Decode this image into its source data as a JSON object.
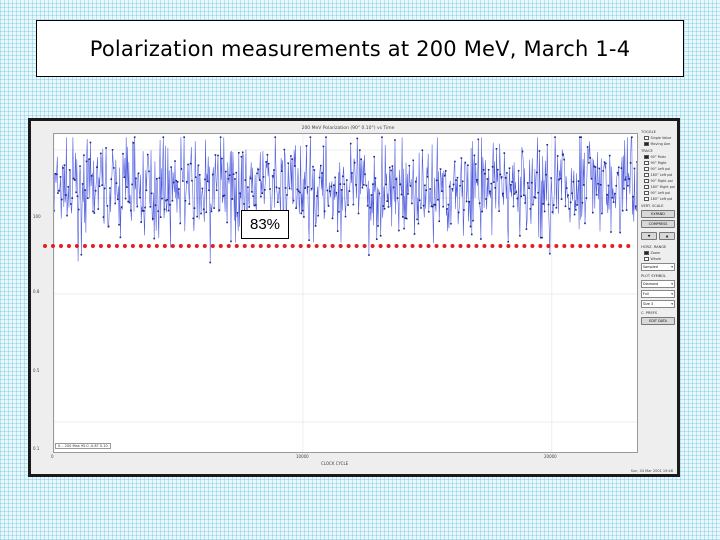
{
  "slide": {
    "title": "Polarization measurements at 200 MeV, March 1-4",
    "callout": "83%"
  },
  "plot": {
    "title": "200 MeV Polarization (90° 0.10°) vs Time",
    "x_axis_label": "CLOCK CYCLE",
    "y_ticks": [
      "100",
      "0.8",
      "0.5",
      "0.1"
    ],
    "x_ticks": [
      "0",
      "10000",
      "20000"
    ],
    "status_readout": "0... 200  Max 95.0 -0.87 0.10",
    "footer": "Sun, 04 Mar 2001 19:48"
  },
  "panel": {
    "toggle_label": "TOGGLE",
    "toggle_items": [
      {
        "label": "Single Value",
        "on": false
      },
      {
        "label": "Moving Ave",
        "on": true
      }
    ],
    "trace_label": "TRACE",
    "trace_items": [
      {
        "label": "90° Polar",
        "on": true
      },
      {
        "label": "90° Right",
        "on": false
      },
      {
        "label": "90° Left pol",
        "on": false
      },
      {
        "label": "180° Left pol",
        "on": false
      },
      {
        "label": "90° Right pol",
        "on": false
      },
      {
        "label": "180° Right pol",
        "on": false
      },
      {
        "label": "90° Left pol",
        "on": false
      },
      {
        "label": "180° Left pol",
        "on": false
      }
    ],
    "vert_scale_label": "VERT. SCALE",
    "expand_label": "EXPAND",
    "compress_label": "COMPRESS",
    "down_arrow": "▼",
    "up_arrow": "▲",
    "horz_range_label": "HORZ. RANGE",
    "horz_items": [
      {
        "label": "Zoom",
        "on": true
      },
      {
        "label": "Whole",
        "on": false
      }
    ],
    "horz_select": "Sampled",
    "plot_symbol_label": "PLOT SYMBOL",
    "plot_symbol_select": "Diamond",
    "plot_fill_select": "Full",
    "plot_size_select": "Size 3",
    "c_prefs_label": "C. PREFS",
    "edit_data_label": "EDIT DATA"
  },
  "chart_data": {
    "type": "line",
    "title": "200 MeV Polarization (90° 0.10°) vs Time",
    "xlabel": "CLOCK CYCLE",
    "ylabel": "",
    "xlim": [
      0,
      23500
    ],
    "ylim": [
      0,
      1.0
    ],
    "x_ticks": [
      0,
      10000,
      20000
    ],
    "series": [
      {
        "mean": 0.83,
        "spread": 0.07,
        "n_points": 900
      }
    ],
    "reference_line": 0.83,
    "grid": true,
    "colors": {
      "series": "#2a3ad8",
      "reference": "#e02020"
    }
  }
}
